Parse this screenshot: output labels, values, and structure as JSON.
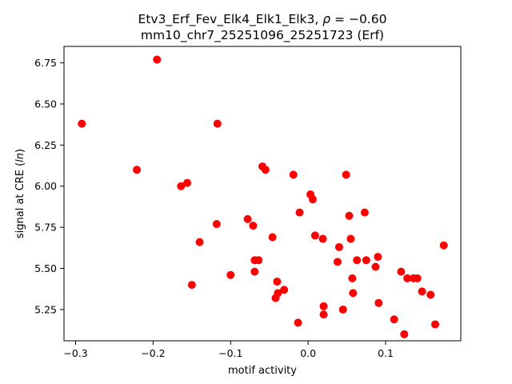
{
  "chart_data": {
    "type": "scatter",
    "title": "Etv3_Erf_Fev_Elk4_Elk1_Elk3, ρ = −0.60",
    "subtitle": "mm10_chr7_25251096_25251723 (Erf)",
    "xlabel": "motif activity",
    "ylabel": "signal at CRE (ln)",
    "xlim": [
      -0.315,
      0.197
    ],
    "ylim": [
      5.06,
      6.85
    ],
    "x_ticks": [
      -0.3,
      -0.2,
      -0.1,
      0.0,
      0.1
    ],
    "x_tick_labels": [
      "−0.3",
      "−0.2",
      "−0.1",
      "0.0",
      "0.1"
    ],
    "y_ticks": [
      5.25,
      5.5,
      5.75,
      6.0,
      6.25,
      6.5,
      6.75
    ],
    "y_tick_labels": [
      "5.25",
      "5.50",
      "5.75",
      "6.00",
      "6.25",
      "6.50",
      "6.75"
    ],
    "grid": false,
    "marker_color": "#ff0000",
    "points": [
      {
        "x": -0.292,
        "y": 6.38
      },
      {
        "x": -0.195,
        "y": 6.77
      },
      {
        "x": -0.221,
        "y": 6.1
      },
      {
        "x": -0.164,
        "y": 6.0
      },
      {
        "x": -0.156,
        "y": 6.02
      },
      {
        "x": -0.15,
        "y": 5.4
      },
      {
        "x": -0.14,
        "y": 5.66
      },
      {
        "x": -0.117,
        "y": 6.38
      },
      {
        "x": -0.118,
        "y": 5.77
      },
      {
        "x": -0.1,
        "y": 5.46
      },
      {
        "x": -0.078,
        "y": 5.8
      },
      {
        "x": -0.071,
        "y": 5.76
      },
      {
        "x": -0.069,
        "y": 5.55
      },
      {
        "x": -0.064,
        "y": 5.55
      },
      {
        "x": -0.069,
        "y": 5.48
      },
      {
        "x": -0.059,
        "y": 6.12
      },
      {
        "x": -0.055,
        "y": 6.1
      },
      {
        "x": -0.046,
        "y": 5.69
      },
      {
        "x": -0.04,
        "y": 5.42
      },
      {
        "x": -0.039,
        "y": 5.35
      },
      {
        "x": -0.042,
        "y": 5.32
      },
      {
        "x": -0.031,
        "y": 5.37
      },
      {
        "x": -0.019,
        "y": 6.07
      },
      {
        "x": -0.011,
        "y": 5.84
      },
      {
        "x": -0.013,
        "y": 5.17
      },
      {
        "x": 0.003,
        "y": 5.95
      },
      {
        "x": 0.006,
        "y": 5.92
      },
      {
        "x": 0.009,
        "y": 5.7
      },
      {
        "x": 0.019,
        "y": 5.68
      },
      {
        "x": 0.02,
        "y": 5.27
      },
      {
        "x": 0.02,
        "y": 5.22
      },
      {
        "x": 0.038,
        "y": 5.54
      },
      {
        "x": 0.04,
        "y": 5.63
      },
      {
        "x": 0.045,
        "y": 5.25
      },
      {
        "x": 0.049,
        "y": 6.07
      },
      {
        "x": 0.053,
        "y": 5.82
      },
      {
        "x": 0.055,
        "y": 5.68
      },
      {
        "x": 0.057,
        "y": 5.44
      },
      {
        "x": 0.058,
        "y": 5.35
      },
      {
        "x": 0.063,
        "y": 5.55
      },
      {
        "x": 0.073,
        "y": 5.84
      },
      {
        "x": 0.075,
        "y": 5.55
      },
      {
        "x": 0.087,
        "y": 5.51
      },
      {
        "x": 0.09,
        "y": 5.57
      },
      {
        "x": 0.091,
        "y": 5.29
      },
      {
        "x": 0.111,
        "y": 5.19
      },
      {
        "x": 0.12,
        "y": 5.48
      },
      {
        "x": 0.124,
        "y": 5.1
      },
      {
        "x": 0.128,
        "y": 5.44
      },
      {
        "x": 0.136,
        "y": 5.44
      },
      {
        "x": 0.141,
        "y": 5.44
      },
      {
        "x": 0.147,
        "y": 5.36
      },
      {
        "x": 0.158,
        "y": 5.34
      },
      {
        "x": 0.164,
        "y": 5.16
      },
      {
        "x": 0.175,
        "y": 5.64
      }
    ]
  }
}
